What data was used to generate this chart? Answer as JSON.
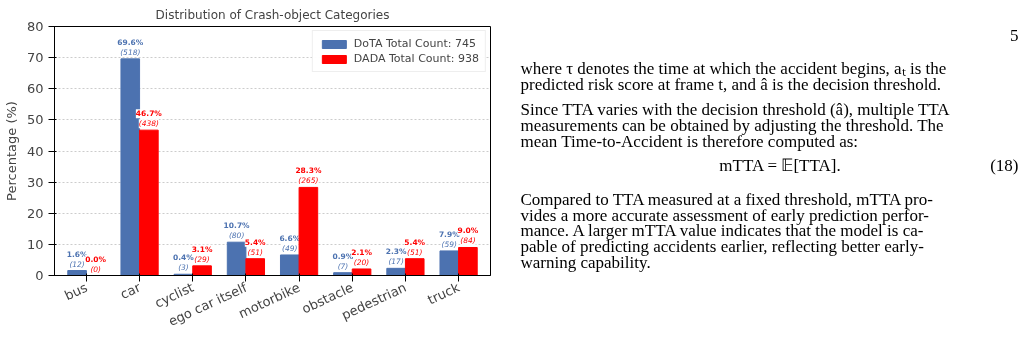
{
  "chart_data": {
    "type": "bar",
    "title": "Distribution of Crash-object Categories",
    "ylabel": "Percentage (%)",
    "categories": [
      "bus",
      "car",
      "cyclist",
      "ego car itself",
      "motorbike",
      "obstacle",
      "pedestrian",
      "truck"
    ],
    "series": [
      {
        "name": "DoTA Total Count: 745",
        "color": "#4c72b0",
        "values": [
          1.6,
          69.6,
          0.4,
          10.7,
          6.6,
          0.9,
          2.3,
          7.9
        ],
        "value_labels": [
          "1.6%\n(12)",
          "69.6%\n(518)",
          "0.4%\n(3)",
          "10.7%\n(80)",
          "6.6%\n(49)",
          "0.9%\n(7)",
          "2.3%\n(17)",
          "7.9%\n(59)"
        ]
      },
      {
        "name": "DADA Total Count: 938",
        "color": "#ff0000",
        "values": [
          0.0,
          46.7,
          3.1,
          5.4,
          28.3,
          2.1,
          5.4,
          9.0
        ],
        "value_labels": [
          "0.0%\n(0)",
          "46.7%\n(438)",
          "3.1%\n(29)",
          "5.4%\n(51)",
          "28.3%\n(265)",
          "2.1%\n(20)",
          "5.4%\n(51)",
          "9.0%\n(84)"
        ]
      }
    ],
    "ylim": [
      0,
      80
    ],
    "yticks": [
      0,
      10,
      20,
      30,
      40,
      50,
      60,
      70,
      80
    ],
    "grid": "y",
    "legend": "top right",
    "annotations": [
      "5",
      "where τ denotes the time at which the accident begins, aₜ is the",
      "predicted risk score at frame t, and â is the decision threshold.",
      "Since TTA varies with the decision threshold (â), multiple TTA",
      "measurements can be obtained by adjusting the threshold. The",
      "mean Time-to-Accident is therefore computed as:",
      "mTTA = 𝔼[TTA].",
      "(18)",
      "Compared to TTA measured at a fixed threshold, mTTA pro-",
      "vides a more accurate assessment of early prediction perfor-",
      "mance.  A larger mTTA value indicates that the model is ca-",
      "pable of predicting accidents earlier, reflecting better early-",
      "warning capability."
    ]
  }
}
